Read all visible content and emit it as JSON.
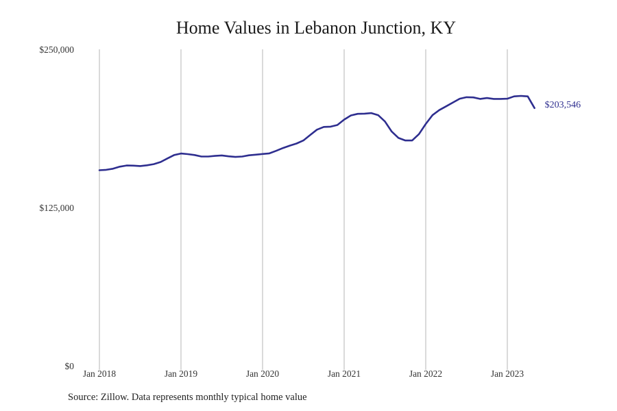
{
  "chart_data": {
    "type": "line",
    "title": "Home Values in Lebanon Junction, KY",
    "xlabel": "",
    "ylabel": "",
    "ylim": [
      0,
      250000
    ],
    "y_ticks": [
      0,
      125000,
      250000
    ],
    "y_tick_labels": [
      "$0",
      "$125,000",
      "$250,000"
    ],
    "x_tick_labels": [
      "Jan 2018",
      "Jan 2019",
      "Jan 2020",
      "Jan 2021",
      "Jan 2022",
      "Jan 2023"
    ],
    "x_range": [
      "2018-01",
      "2023-12"
    ],
    "grid": "vertical",
    "series_color": "#2e2e8f",
    "end_label": "$203,546",
    "series": [
      {
        "x": [
          "2018-01",
          "2018-02",
          "2018-03",
          "2018-04",
          "2018-05",
          "2018-06",
          "2018-07",
          "2018-08",
          "2018-09",
          "2018-10",
          "2018-11",
          "2018-12",
          "2019-01",
          "2019-02",
          "2019-03",
          "2019-04",
          "2019-05",
          "2019-06",
          "2019-07",
          "2019-08",
          "2019-09",
          "2019-10",
          "2019-11",
          "2019-12",
          "2020-01",
          "2020-02",
          "2020-03",
          "2020-04",
          "2020-05",
          "2020-06",
          "2020-07",
          "2020-08",
          "2020-09",
          "2020-10",
          "2020-11",
          "2020-12",
          "2021-01",
          "2021-02",
          "2021-03",
          "2021-04",
          "2021-05",
          "2021-06",
          "2021-07",
          "2021-08",
          "2021-09",
          "2021-10",
          "2021-11",
          "2021-12",
          "2022-01",
          "2022-02",
          "2022-03",
          "2022-04",
          "2022-05",
          "2022-06",
          "2022-07",
          "2022-08",
          "2022-09",
          "2022-10",
          "2022-11",
          "2022-12",
          "2023-01",
          "2023-02",
          "2023-03",
          "2023-04",
          "2023-05"
        ],
        "values": [
          154500,
          154800,
          155700,
          157300,
          158200,
          158100,
          157800,
          158400,
          159300,
          161000,
          163800,
          166500,
          167700,
          167200,
          166500,
          165300,
          165300,
          165800,
          166200,
          165500,
          165000,
          165300,
          166300,
          166800,
          167300,
          167800,
          169800,
          172000,
          173900,
          175600,
          178000,
          182300,
          186500,
          188700,
          188900,
          190200,
          194500,
          197800,
          199000,
          199200,
          199600,
          198000,
          193000,
          185000,
          180000,
          178000,
          178000,
          183000,
          191000,
          198000,
          202000,
          205000,
          208000,
          211000,
          212200,
          212000,
          210800,
          211500,
          210800,
          210800,
          211000,
          212800,
          213200,
          212800,
          203546
        ]
      }
    ]
  },
  "source_text": "Source: Zillow. Data represents monthly typical home value"
}
